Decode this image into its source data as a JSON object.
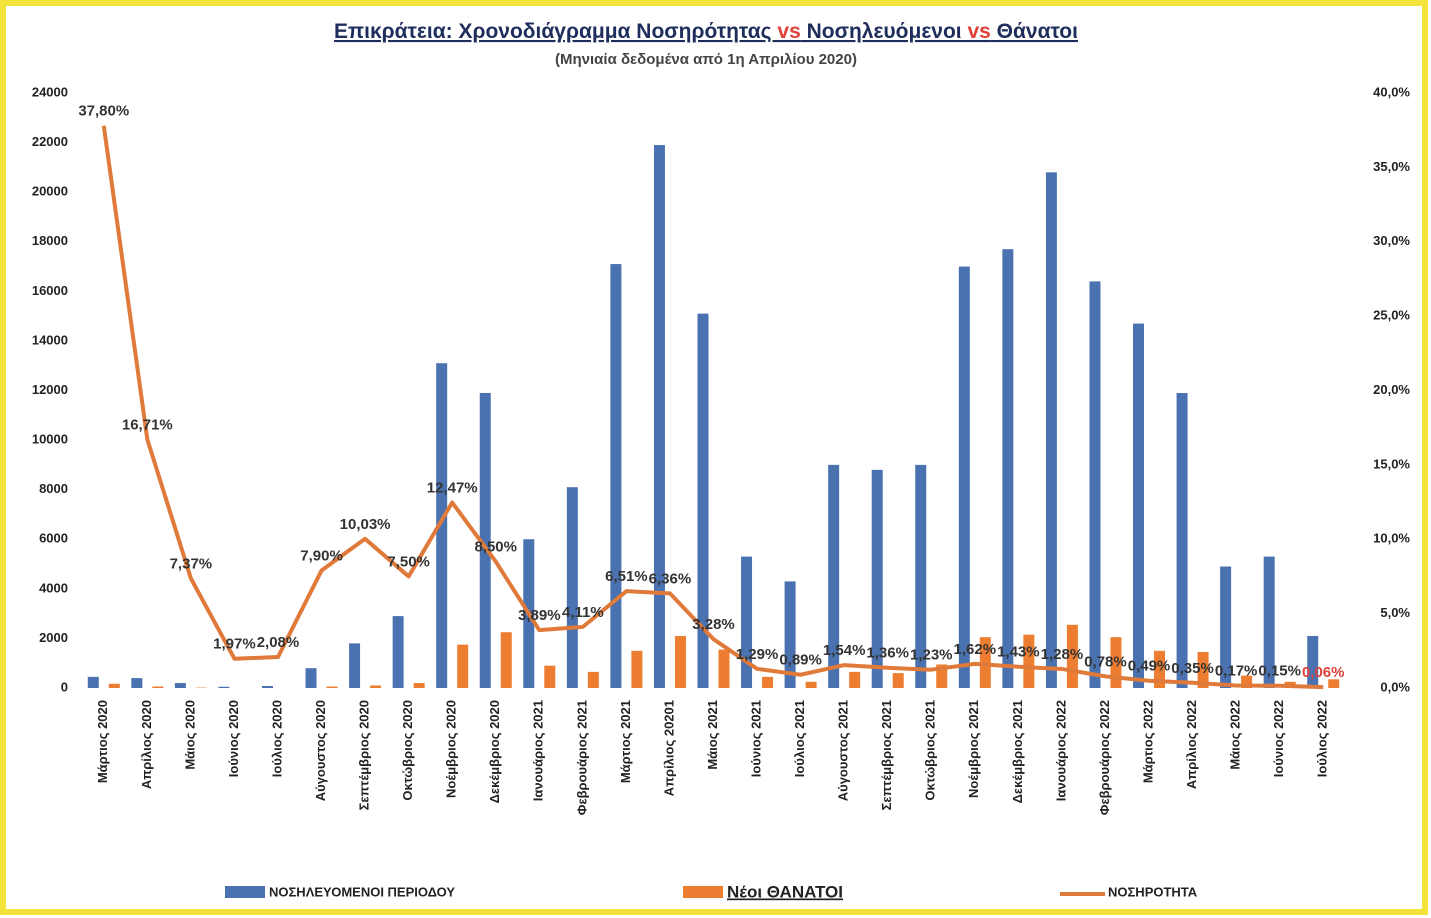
{
  "chart_data": {
    "type": "bar",
    "title_parts": [
      "Επικράτεια: Χρονοδιάγραμμα Νοσηρότητας ",
      "vs",
      " Νοσηλευόμενοι ",
      "vs",
      " Θάνατοι"
    ],
    "subtitle": "(Μηνιαία δεδομένα από 1η Απριλίου 2020)",
    "categories": [
      "Μάρτιος 2020",
      "Απρίλιος 2020",
      "Μάιος 2020",
      "Ιούνιος 2020",
      "Ιούλιος 2020",
      "Αύγουστος 2020",
      "Σεπτέμβριος 2020",
      "Οκτώβριος 2020",
      "Νοέμβριος 2020",
      "Δεκέμβριος 2020",
      "Ιανουάριος 2021",
      "Φεβρουάριος 2021",
      "Μάρτιος 2021",
      "Απρίλιος 20201",
      "Μάιος 2021",
      "Ιούνιος 2021",
      "Ιούλιος 2021",
      "Αύγουστος 2021",
      "Σεπτέμβριος 2021",
      "Οκτώβριος 2021",
      "Νοέμβριος 2021",
      "Δεκέμβριος 2021",
      "Ιανουάριος 2022",
      "Φεβρουάριος 2022",
      "Μάρτιος 2022",
      "Απρίλιος 2022",
      "Μάιος 2022",
      "Ιούνιος 2022",
      "Ιούλιος 2022"
    ],
    "series": [
      {
        "name": "ΝΟΣΗΛΕΥΟΜΕΝΟΙ ΠΕΡΙΟΔΟΥ",
        "color": "#4a72b0",
        "type": "bar",
        "values": [
          450,
          400,
          200,
          50,
          80,
          800,
          1800,
          2900,
          13100,
          11900,
          6000,
          8100,
          17100,
          21900,
          15100,
          5300,
          4300,
          9000,
          8800,
          9000,
          17000,
          17700,
          20800,
          16400,
          14700,
          11900,
          4900,
          5300,
          2100
        ]
      },
      {
        "name": "Νέοι ΘΑΝΑΤΟΙ",
        "color": "#ed7d31",
        "type": "bar",
        "values": [
          170,
          60,
          15,
          1,
          2,
          60,
          100,
          200,
          1750,
          2250,
          900,
          650,
          1500,
          2100,
          1550,
          450,
          250,
          650,
          600,
          950,
          2050,
          2150,
          2550,
          2050,
          1500,
          1450,
          500,
          250,
          350
        ]
      },
      {
        "name": "ΝΟΣΗΡΟΤΗΤΑ",
        "color": "#e07a3a",
        "type": "line",
        "axis": "y2",
        "values": [
          37.8,
          16.71,
          7.37,
          1.97,
          2.08,
          7.9,
          10.03,
          7.5,
          12.47,
          8.5,
          3.89,
          4.11,
          6.51,
          6.36,
          3.28,
          1.29,
          0.89,
          1.54,
          1.36,
          1.23,
          1.62,
          1.43,
          1.28,
          0.78,
          0.49,
          0.35,
          0.17,
          0.15,
          0.06
        ],
        "value_labels": [
          "37,80%",
          "16,71%",
          "7,37%",
          "1,97%",
          "2,08%",
          "7,90%",
          "10,03%",
          "7,50%",
          "12,47%",
          "8,50%",
          "3,89%",
          "4,11%",
          "6,51%",
          "6,36%",
          "3,28%",
          "1,29%",
          "0,89%",
          "1,54%",
          "1,36%",
          "1,23%",
          "1,62%",
          "1,43%",
          "1,28%",
          "0,78%",
          "0,49%",
          "0,35%",
          "0,17%",
          "0,15%",
          "0,06%"
        ]
      }
    ],
    "ylim": [
      0,
      24000
    ],
    "yticks": [
      0,
      2000,
      4000,
      6000,
      8000,
      10000,
      12000,
      14000,
      16000,
      18000,
      20000,
      22000,
      24000
    ],
    "y2lim": [
      0,
      40
    ],
    "y2ticks": [
      {
        "value": 0,
        "label": "0,0%"
      },
      {
        "value": 5,
        "label": "5,0%"
      },
      {
        "value": 10,
        "label": "10,0%"
      },
      {
        "value": 15,
        "label": "15,0%"
      },
      {
        "value": 20,
        "label": "20,0%"
      },
      {
        "value": 25,
        "label": "25,0%"
      },
      {
        "value": 30,
        "label": "30,0%"
      },
      {
        "value": 35,
        "label": "35,0%"
      },
      {
        "value": 40,
        "label": "40,0%"
      }
    ],
    "legend": "bottom"
  }
}
